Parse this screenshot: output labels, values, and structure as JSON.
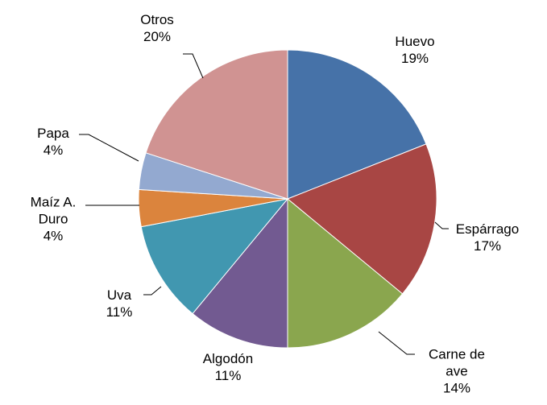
{
  "chart_data": {
    "type": "pie",
    "categories": [
      "Huevo",
      "Espárrago",
      "Carne de ave",
      "Algodón",
      "Uva",
      "Maíz A. Duro",
      "Papa",
      "Otros"
    ],
    "values": [
      19,
      17,
      14,
      11,
      11,
      4,
      4,
      20
    ],
    "value_labels": [
      "19%",
      "17%",
      "14%",
      "11%",
      "11%",
      "4%",
      "4%",
      "20%"
    ],
    "colors": [
      "#4672a8",
      "#a84644",
      "#8aa64e",
      "#725a91",
      "#4197b0",
      "#db843d",
      "#93a9d0",
      "#d09392"
    ]
  }
}
